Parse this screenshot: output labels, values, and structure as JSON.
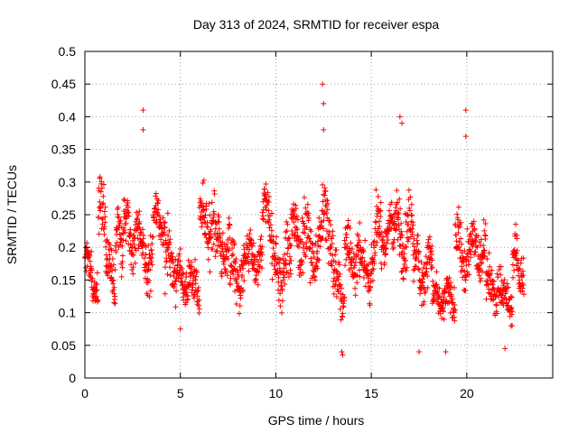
{
  "chart_data": {
    "type": "scatter",
    "title": "Day 313 of 2024, SRMTID for receiver espa",
    "xlabel": "GPS time / hours",
    "ylabel": "SRMTID / TECUs",
    "xlim": [
      0,
      24.5
    ],
    "ylim": [
      0,
      0.5
    ],
    "xticks": [
      0,
      5,
      10,
      15,
      20
    ],
    "xtick_labels": [
      "0",
      "5",
      "10",
      "15",
      "20"
    ],
    "yticks": [
      0,
      0.05,
      0.1,
      0.15,
      0.2,
      0.25,
      0.3,
      0.35,
      0.4,
      0.45,
      0.5
    ],
    "ytick_labels": [
      "0",
      "0.05",
      "0.1",
      "0.15",
      "0.2",
      "0.25",
      "0.3",
      "0.35",
      "0.4",
      "0.45",
      "0.5"
    ],
    "grid": true,
    "marker": "+",
    "series": [
      {
        "name": "SRMTID",
        "color": "#ff0000",
        "segments": [
          {
            "t": [
              0.0,
              0.4
            ],
            "base": 0.17,
            "spread": 0.035
          },
          {
            "t": [
              0.4,
              0.7
            ],
            "base": 0.12,
            "spread": 0.025
          },
          {
            "t": [
              0.7,
              1.1
            ],
            "base": 0.25,
            "spread": 0.05
          },
          {
            "t": [
              1.1,
              1.6
            ],
            "base": 0.16,
            "spread": 0.04
          },
          {
            "t": [
              1.6,
              2.0
            ],
            "base": 0.21,
            "spread": 0.04
          },
          {
            "t": [
              2.0,
              2.8
            ],
            "base": 0.22,
            "spread": 0.04
          },
          {
            "t": [
              2.8,
              3.6
            ],
            "base": 0.19,
            "spread": 0.045
          },
          {
            "t": [
              3.6,
              4.2
            ],
            "base": 0.24,
            "spread": 0.03
          },
          {
            "t": [
              4.2,
              4.8
            ],
            "base": 0.18,
            "spread": 0.05
          },
          {
            "t": [
              4.8,
              5.6
            ],
            "base": 0.15,
            "spread": 0.03
          },
          {
            "t": [
              5.6,
              6.0
            ],
            "base": 0.13,
            "spread": 0.035
          },
          {
            "t": [
              6.0,
              6.8
            ],
            "base": 0.24,
            "spread": 0.045
          },
          {
            "t": [
              6.8,
              7.6
            ],
            "base": 0.2,
            "spread": 0.045
          },
          {
            "t": [
              7.6,
              8.5
            ],
            "base": 0.16,
            "spread": 0.04
          },
          {
            "t": [
              8.5,
              9.3
            ],
            "base": 0.18,
            "spread": 0.035
          },
          {
            "t": [
              9.3,
              9.8
            ],
            "base": 0.25,
            "spread": 0.04
          },
          {
            "t": [
              9.8,
              10.8
            ],
            "base": 0.17,
            "spread": 0.045
          },
          {
            "t": [
              10.8,
              11.5
            ],
            "base": 0.22,
            "spread": 0.045
          },
          {
            "t": [
              11.5,
              12.4
            ],
            "base": 0.2,
            "spread": 0.045
          },
          {
            "t": [
              12.4,
              13.0
            ],
            "base": 0.23,
            "spread": 0.05
          },
          {
            "t": [
              13.0,
              13.6
            ],
            "base": 0.14,
            "spread": 0.04
          },
          {
            "t": [
              13.6,
              14.4
            ],
            "base": 0.19,
            "spread": 0.04
          },
          {
            "t": [
              14.4,
              15.2
            ],
            "base": 0.17,
            "spread": 0.04
          },
          {
            "t": [
              15.2,
              16.2
            ],
            "base": 0.22,
            "spread": 0.04
          },
          {
            "t": [
              16.2,
              17.2
            ],
            "base": 0.22,
            "spread": 0.045
          },
          {
            "t": [
              17.2,
              18.2
            ],
            "base": 0.17,
            "spread": 0.04
          },
          {
            "t": [
              18.2,
              19.4
            ],
            "base": 0.12,
            "spread": 0.025
          },
          {
            "t": [
              19.4,
              20.2
            ],
            "base": 0.19,
            "spread": 0.045
          },
          {
            "t": [
              20.2,
              21.0
            ],
            "base": 0.2,
            "spread": 0.04
          },
          {
            "t": [
              21.0,
              21.8
            ],
            "base": 0.14,
            "spread": 0.035
          },
          {
            "t": [
              21.8,
              22.4
            ],
            "base": 0.12,
            "spread": 0.025
          },
          {
            "t": [
              22.4,
              23.0
            ],
            "base": 0.17,
            "spread": 0.04
          }
        ],
        "notable_points": [
          {
            "x": 12.45,
            "y": 0.45
          },
          {
            "x": 12.5,
            "y": 0.42
          },
          {
            "x": 12.5,
            "y": 0.38
          },
          {
            "x": 3.05,
            "y": 0.41
          },
          {
            "x": 3.05,
            "y": 0.38
          },
          {
            "x": 16.5,
            "y": 0.4
          },
          {
            "x": 16.6,
            "y": 0.39
          },
          {
            "x": 19.95,
            "y": 0.41
          },
          {
            "x": 19.95,
            "y": 0.37
          },
          {
            "x": 13.45,
            "y": 0.04
          },
          {
            "x": 13.5,
            "y": 0.035
          },
          {
            "x": 17.5,
            "y": 0.04
          },
          {
            "x": 18.9,
            "y": 0.04
          },
          {
            "x": 22.0,
            "y": 0.045
          },
          {
            "x": 5.0,
            "y": 0.075
          }
        ]
      }
    ]
  }
}
